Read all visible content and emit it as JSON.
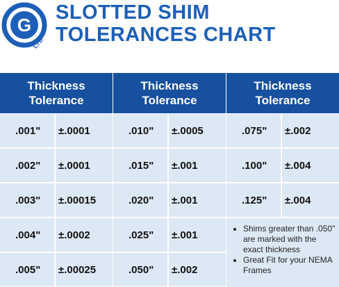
{
  "header": {
    "logo": {
      "letter": "G",
      "sub": "LTD"
    },
    "title": [
      "SLOTTED SHIM",
      "TOLERANCES CHART"
    ]
  },
  "table": {
    "columns": [
      [
        "Thickness",
        "Tolerance"
      ],
      [
        "Thickness",
        "Tolerance"
      ],
      [
        "Thickness",
        "Tolerance"
      ]
    ],
    "groups": [
      [
        [
          ".001\"",
          "±.0001"
        ],
        [
          ".002\"",
          "±.0001"
        ],
        [
          ".003\"",
          "±.00015"
        ],
        [
          ".004\"",
          "±.0002"
        ],
        [
          ".005\"",
          "±.00025"
        ]
      ],
      [
        [
          ".010\"",
          "±.0005"
        ],
        [
          ".015\"",
          "±.001"
        ],
        [
          ".020\"",
          "±.001"
        ],
        [
          ".025\"",
          "±.001"
        ],
        [
          ".050\"",
          "±.002"
        ]
      ],
      [
        [
          ".075\"",
          "±.002"
        ],
        [
          ".100\"",
          "±.004"
        ],
        [
          ".125\"",
          "±.004"
        ]
      ]
    ],
    "notes": [
      "Shims greater than .050\" are marked with the exact thickness",
      "Great Fit for your NEMA Frames"
    ]
  }
}
